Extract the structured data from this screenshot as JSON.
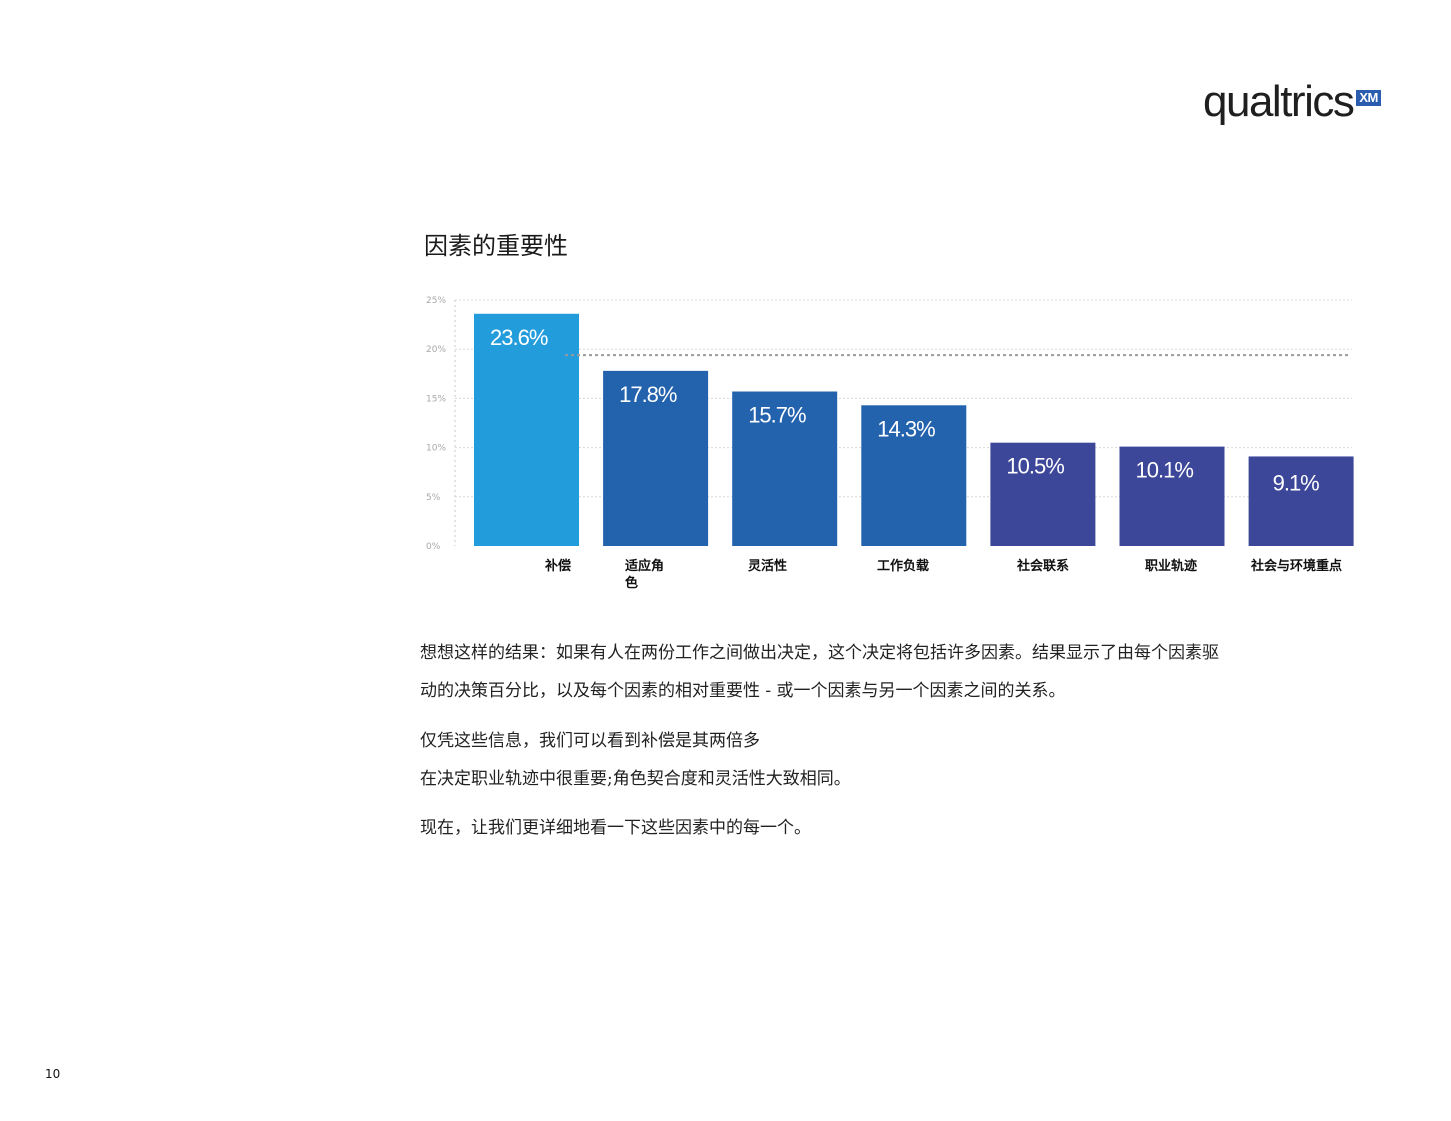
{
  "logo": {
    "wordmark": "qualtrics",
    "mark": "XM"
  },
  "chart_data": {
    "type": "bar",
    "title": "因素的重要性",
    "xlabel": "",
    "ylabel": "",
    "ylim": [
      0,
      25
    ],
    "yticks": [
      "0%",
      "5%",
      "10%",
      "15%",
      "20%",
      "25%"
    ],
    "grid": true,
    "reference_line": 19.4,
    "categories": [
      "补偿",
      "适应角色",
      "灵活性",
      "工作负载",
      "社会联系",
      "职业轨迹",
      "社会与环境重点"
    ],
    "values": [
      23.6,
      17.8,
      15.7,
      14.3,
      10.5,
      10.1,
      9.1
    ],
    "data_labels": [
      "23.6%",
      "17.8%",
      "15.7%",
      "14.3%",
      "10.5%",
      "10.1%",
      "9.1%"
    ],
    "colors": [
      "#239cdb",
      "#2362ad",
      "#2362ad",
      "#2362ad",
      "#3d479a",
      "#3d479a",
      "#3d479a"
    ]
  },
  "body": {
    "p1": [
      "想想这样的结果：如果有人在两份工作之间做出决定，这个决定将包括许多因素。结果显示了由每个因素驱",
      "动的决策百分比，以及每个因素的相对重要性 - 或一个因素与另一个因素之间的关系。"
    ],
    "p2": [
      "仅凭这些信息，我们可以看到补偿是其两倍多",
      "在决定职业轨迹中很重要;角色契合度和灵活性大致相同。"
    ],
    "p3": [
      "现在，让我们更详细地看一下这些因素中的每一个。"
    ]
  },
  "page_number": "10"
}
